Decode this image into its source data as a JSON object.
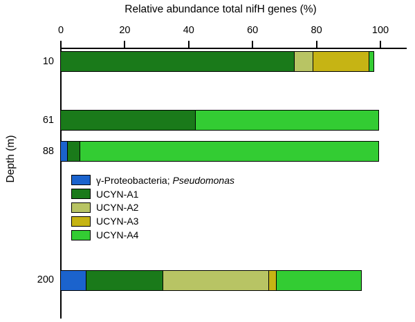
{
  "chart_data": {
    "type": "bar",
    "orientation": "horizontal",
    "stacked": true,
    "grid": false,
    "x_axis_position": "top",
    "legend_position": "inside-middle-left",
    "title": "Relative abundance total nifH genes (%)",
    "xlabel": "Relative abundance total nifH genes (%)",
    "ylabel": "Depth (m)",
    "xlim": [
      0,
      100
    ],
    "x_ticks": [
      0,
      20,
      40,
      60,
      80,
      100
    ],
    "categories": [
      10,
      61,
      88,
      200
    ],
    "series": [
      {
        "name": "γ-Proteobacteria; Pseudomonas",
        "color": "#1b63cd",
        "values": [
          0,
          0,
          2,
          8
        ]
      },
      {
        "name": "UCYN-A1",
        "color": "#1a7a1a",
        "values": [
          73,
          42,
          4,
          24
        ]
      },
      {
        "name": "UCYN-A2",
        "color": "#b8c464",
        "values": [
          6,
          0,
          0,
          33
        ]
      },
      {
        "name": "UCYN-A3",
        "color": "#c6b414",
        "values": [
          17.5,
          0,
          0,
          2.5
        ]
      },
      {
        "name": "UCYN-A4",
        "color": "#33cc33",
        "values": [
          1.5,
          57.5,
          93.5,
          26.5
        ]
      }
    ]
  },
  "legend": {
    "items": [
      {
        "label": "γ-Proteobacteria; ",
        "label_italic": "Pseudomonas",
        "color": "#1b63cd"
      },
      {
        "label": "UCYN-A1",
        "label_italic": "",
        "color": "#1a7a1a"
      },
      {
        "label": "UCYN-A2",
        "label_italic": "",
        "color": "#b8c464"
      },
      {
        "label": "UCYN-A3",
        "label_italic": "",
        "color": "#c6b414"
      },
      {
        "label": "UCYN-A4",
        "label_italic": "",
        "color": "#33cc33"
      }
    ]
  }
}
